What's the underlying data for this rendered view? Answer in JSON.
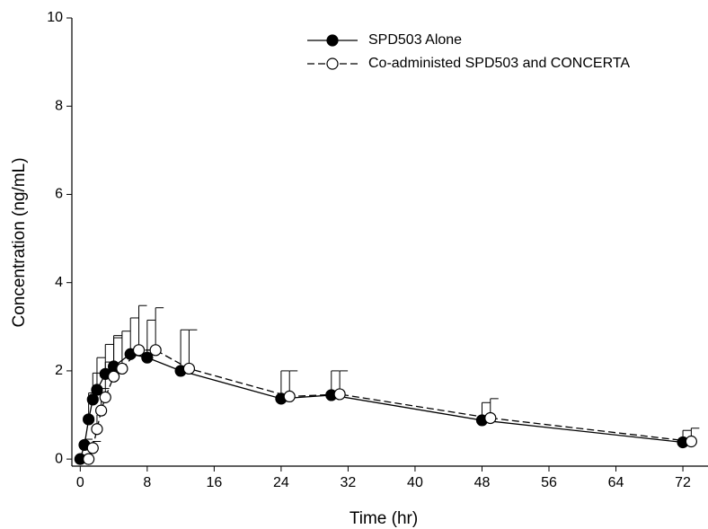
{
  "chart_data": {
    "type": "line",
    "xlabel": "Time (hr)",
    "ylabel": "Concentration (ng/mL)",
    "xlim": [
      -1,
      75
    ],
    "ylim": [
      -0.16,
      10
    ],
    "xticks": [
      0,
      8,
      16,
      24,
      32,
      40,
      48,
      56,
      64,
      72
    ],
    "yticks": [
      0,
      2,
      4,
      6,
      8,
      10
    ],
    "legend": "top-right",
    "series": [
      {
        "name": "SPD503 Alone",
        "color": "#000000",
        "marker": "filled",
        "dash": false,
        "x": [
          0,
          0.5,
          1,
          1.5,
          2,
          3,
          4,
          6,
          8,
          12,
          24,
          30,
          48,
          72
        ],
        "values": [
          0,
          0.32,
          0.9,
          1.35,
          1.57,
          1.93,
          2.1,
          2.38,
          2.3,
          2.0,
          1.37,
          1.45,
          0.88,
          0.38
        ],
        "errors": [
          null,
          0.13,
          0.6,
          0.6,
          0.73,
          0.67,
          0.65,
          0.82,
          0.85,
          0.93,
          0.63,
          0.55,
          0.4,
          0.27
        ]
      },
      {
        "name": "Co-administed SPD503 and CONCERTA",
        "color": "#000000",
        "marker": "open",
        "dash": true,
        "x": [
          1,
          1.5,
          2,
          2.5,
          3,
          4,
          5,
          7,
          9,
          13,
          25,
          31,
          49,
          73
        ],
        "values": [
          0,
          0.25,
          0.68,
          1.1,
          1.4,
          1.87,
          2.05,
          2.47,
          2.47,
          2.05,
          1.42,
          1.47,
          0.93,
          0.4
        ],
        "errors": [
          null,
          0.15,
          0.32,
          0.5,
          0.8,
          0.93,
          0.85,
          1.01,
          0.96,
          0.88,
          0.58,
          0.53,
          0.44,
          0.3
        ]
      }
    ]
  }
}
